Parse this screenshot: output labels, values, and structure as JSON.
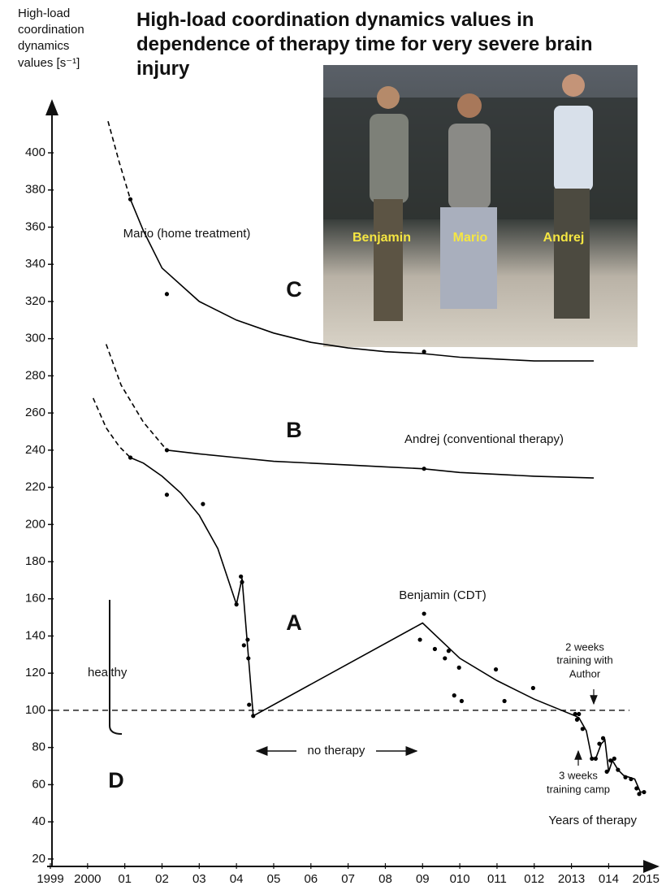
{
  "chart_data": {
    "type": "line",
    "title": "High-load coordination dynamics values in dependence of therapy time for very severe brain injury",
    "y_label": [
      "High-load",
      "coordination",
      "dynamics",
      "values [s⁻¹]"
    ],
    "x_label": "Years of therapy",
    "xlim": [
      1999,
      2015.3
    ],
    "ylim": [
      16,
      428
    ],
    "xticks": [
      1999,
      2000,
      {
        "value": 2001,
        "label": "01"
      },
      {
        "value": 2002,
        "label": "02"
      },
      {
        "value": 2003,
        "label": "03"
      },
      {
        "value": 2004,
        "label": "04"
      },
      {
        "value": 2005,
        "label": "05"
      },
      {
        "value": 2006,
        "label": "06"
      },
      {
        "value": 2007,
        "label": "07"
      },
      {
        "value": 2008,
        "label": "08"
      },
      {
        "value": 2009,
        "label": "09"
      },
      {
        "value": 2010,
        "label": "010"
      },
      {
        "value": 2011,
        "label": "011"
      },
      {
        "value": 2012,
        "label": "012"
      },
      2013,
      {
        "value": 2014,
        "label": "014"
      },
      2015
    ],
    "yticks": [
      20,
      40,
      60,
      80,
      100,
      120,
      140,
      160,
      180,
      200,
      220,
      240,
      260,
      280,
      300,
      320,
      340,
      360,
      380,
      400
    ],
    "reference_line": 100,
    "color": "#000000",
    "series": [
      {
        "name": "A",
        "label": "Benjamin (CDT)",
        "points": {
          "x": [
            2001.15,
            2002.13,
            2003.1,
            2004.0,
            2004.12,
            2004.15,
            2004.2,
            2004.3,
            2004.32,
            2004.34,
            2004.45,
            2008.93,
            2009.04,
            2009.33,
            2009.6,
            2009.7,
            2009.85,
            2009.98,
            2010.05,
            2010.97,
            2011.2,
            2011.97,
            2013.1,
            2013.15,
            2013.2,
            2013.3,
            2013.55,
            2013.65,
            2013.75,
            2013.85,
            2013.95,
            2014.05,
            2014.15,
            2014.25,
            2014.45,
            2014.6,
            2014.75,
            2014.82,
            2014.95
          ],
          "y": [
            236,
            216,
            211,
            157,
            172,
            169,
            135,
            138,
            128,
            103,
            97,
            138,
            152,
            133,
            128,
            132,
            108,
            123,
            105,
            122,
            105,
            112,
            98,
            95,
            98,
            90,
            74,
            74,
            82,
            85,
            67,
            73,
            74,
            68,
            64,
            63,
            58,
            55,
            56
          ]
        },
        "dashed_curve": {
          "x": [
            2000.15,
            2000.5,
            2000.85,
            2001.15
          ],
          "y": [
            268,
            252,
            242,
            236
          ]
        },
        "curve": {
          "x": [
            2001.15,
            2001.5,
            2002,
            2002.5,
            2003,
            2003.5,
            2004.0,
            2004.15,
            2004.45,
            2009.0,
            2010,
            2011,
            2012,
            2013.1,
            2013.2,
            2013.4,
            2013.55,
            2013.65,
            2013.8,
            2013.9,
            2014.0,
            2014.1,
            2014.25,
            2014.4,
            2014.55,
            2014.7,
            2014.85,
            2014.95
          ],
          "y": [
            236,
            233,
            226,
            217,
            205,
            187,
            157,
            171,
            97,
            147,
            128,
            116,
            106,
            97,
            96,
            89,
            74,
            74,
            82,
            84,
            67,
            73,
            68,
            65,
            64,
            63,
            56,
            56
          ]
        }
      },
      {
        "name": "B",
        "label": "Andrej (conventional therapy)",
        "points": {
          "x": [
            2002.13,
            2009.04
          ],
          "y": [
            240,
            230
          ]
        },
        "dashed_curve": {
          "x": [
            2000.5,
            2000.9,
            2001.5,
            2002.13
          ],
          "y": [
            297,
            275,
            255,
            240
          ]
        },
        "curve": {
          "x": [
            2002.13,
            2003,
            2004,
            2005,
            2006,
            2007,
            2008,
            2009,
            2010,
            2011,
            2012,
            2013.6
          ],
          "y": [
            240,
            238,
            236,
            234,
            233,
            232,
            231,
            230,
            228,
            227,
            226,
            225
          ]
        }
      },
      {
        "name": "C",
        "label": "Mario (home treatment)",
        "points": {
          "x": [
            2001.15,
            2002.13,
            2009.04
          ],
          "y": [
            375,
            324,
            293
          ]
        },
        "dashed_curve": {
          "x": [
            2000.55,
            2000.85,
            2001.15
          ],
          "y": [
            417,
            395,
            375
          ]
        },
        "curve": {
          "x": [
            2001.15,
            2001.5,
            2002,
            2003,
            2004,
            2005,
            2006,
            2007,
            2008,
            2009,
            2010,
            2011,
            2012,
            2013.6
          ],
          "y": [
            375,
            358,
            338,
            320,
            310,
            303,
            298,
            295,
            293,
            292,
            290,
            289,
            288,
            288
          ]
        }
      }
    ],
    "annotations": {
      "healthy": "healthy",
      "bracket": "D",
      "no_therapy": "no therapy",
      "training_author": [
        "2 weeks",
        "training with",
        "Author"
      ],
      "training_camp": [
        "3 weeks",
        "training camp"
      ]
    },
    "photo_labels": [
      "Benjamin",
      "Mario",
      "Andrej"
    ]
  }
}
